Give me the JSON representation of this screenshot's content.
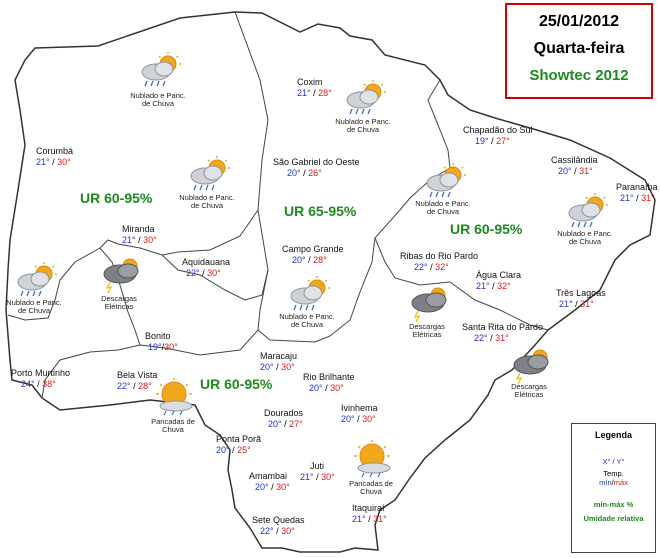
{
  "header": {
    "date": "25/01/2012",
    "weekday": "Quarta-feira",
    "source": "Showtec 2012"
  },
  "colors": {
    "border": "#d40000",
    "min_temp": "#1f2fd8",
    "max_temp": "#d81818",
    "humidity": "#1e8a1e"
  },
  "cities": [
    {
      "name": "Corumbá",
      "min": "21°",
      "max": "30°"
    },
    {
      "name": "Coxim",
      "min": "21°",
      "max": "28°"
    },
    {
      "name": "São Gabriel do Oeste",
      "min": "20°",
      "max": "26°"
    },
    {
      "name": "Chapadão do Sul",
      "min": "19°",
      "max": "27°"
    },
    {
      "name": "Cassilândia",
      "min": "20°",
      "max": "31°"
    },
    {
      "name": "Paranaíba",
      "min": "21°",
      "max": "31°"
    },
    {
      "name": "Miranda",
      "min": "21°",
      "max": "30°"
    },
    {
      "name": "Aquidauana",
      "min": "22°",
      "max": "30°"
    },
    {
      "name": "Campo Grande",
      "min": "20°",
      "max": "28°"
    },
    {
      "name": "Ribas do Rio Pardo",
      "min": "22°",
      "max": "32°"
    },
    {
      "name": "Água Clara",
      "min": "21°",
      "max": "32°"
    },
    {
      "name": "Três Lagoas",
      "min": "21°",
      "max": "31°"
    },
    {
      "name": "Bonito",
      "min": "19°",
      "max": "30°"
    },
    {
      "name": "Santa Rita do Pardo",
      "min": "22°",
      "max": "31°"
    },
    {
      "name": "Maracaju",
      "min": "20°",
      "max": "30°"
    },
    {
      "name": "Porto Murtinho",
      "min": "24°",
      "max": "38°"
    },
    {
      "name": "Bela Vista",
      "min": "22°",
      "max": "28°"
    },
    {
      "name": "Rio Brilhante",
      "min": "20°",
      "max": "30°"
    },
    {
      "name": "Dourados",
      "min": "20°",
      "max": "27°"
    },
    {
      "name": "Ivinhema",
      "min": "20°",
      "max": "30°"
    },
    {
      "name": "Ponta Porã",
      "min": "20°",
      "max": "25°"
    },
    {
      "name": "Juti",
      "min": "21°",
      "max": "30°"
    },
    {
      "name": "Amambai",
      "min": "20°",
      "max": "30°"
    },
    {
      "name": "Sete Quedas",
      "min": "22°",
      "max": "30°"
    },
    {
      "name": "Itaquiraí",
      "min": "21°",
      "max": "31°"
    }
  ],
  "humidity_zones": [
    "UR 60-95%",
    "UR 65-95%",
    "UR 60-95%",
    "UR 60-95%"
  ],
  "weather_icons": [
    {
      "icon": "sun-cloud-rain-icon",
      "caption": "Nublado e Panc. de Chuva"
    },
    {
      "icon": "sun-cloud-rain-icon",
      "caption": "Nublado e Panc. de Chuva"
    },
    {
      "icon": "sun-cloud-rain-icon",
      "caption": "Nublado e Panc. de Chuva"
    },
    {
      "icon": "sun-cloud-rain-icon",
      "caption": "Nublado e Panc. de Chuva"
    },
    {
      "icon": "sun-cloud-rain-icon",
      "caption": "Nublado e Panc. de Chuva"
    },
    {
      "icon": "sun-cloud-rain-icon",
      "caption": "Nublado e Panc. de Chuva"
    },
    {
      "icon": "sun-cloud-rain-icon",
      "caption": "Nublado e Panc. de Chuva"
    },
    {
      "icon": "storm-cloud-icon",
      "caption": "Descargas Elétricas"
    },
    {
      "icon": "storm-cloud-icon",
      "caption": "Descargas Elétricas"
    },
    {
      "icon": "storm-cloud-icon",
      "caption": "Descargas Elétricas"
    },
    {
      "icon": "sun-rain-icon",
      "caption": "Pancadas de Chuva"
    },
    {
      "icon": "sun-rain-icon",
      "caption": "Pancadas de Chuva"
    }
  ],
  "legend": {
    "title": "Legenda",
    "minmax_symbol": "X° / Y°",
    "temp_label": "Temp.",
    "temp_min": "mín",
    "temp_sep": "/",
    "temp_max": "máx",
    "humidity_symbol": "mín-máx %",
    "humidity_label": "Umidade relativa"
  }
}
